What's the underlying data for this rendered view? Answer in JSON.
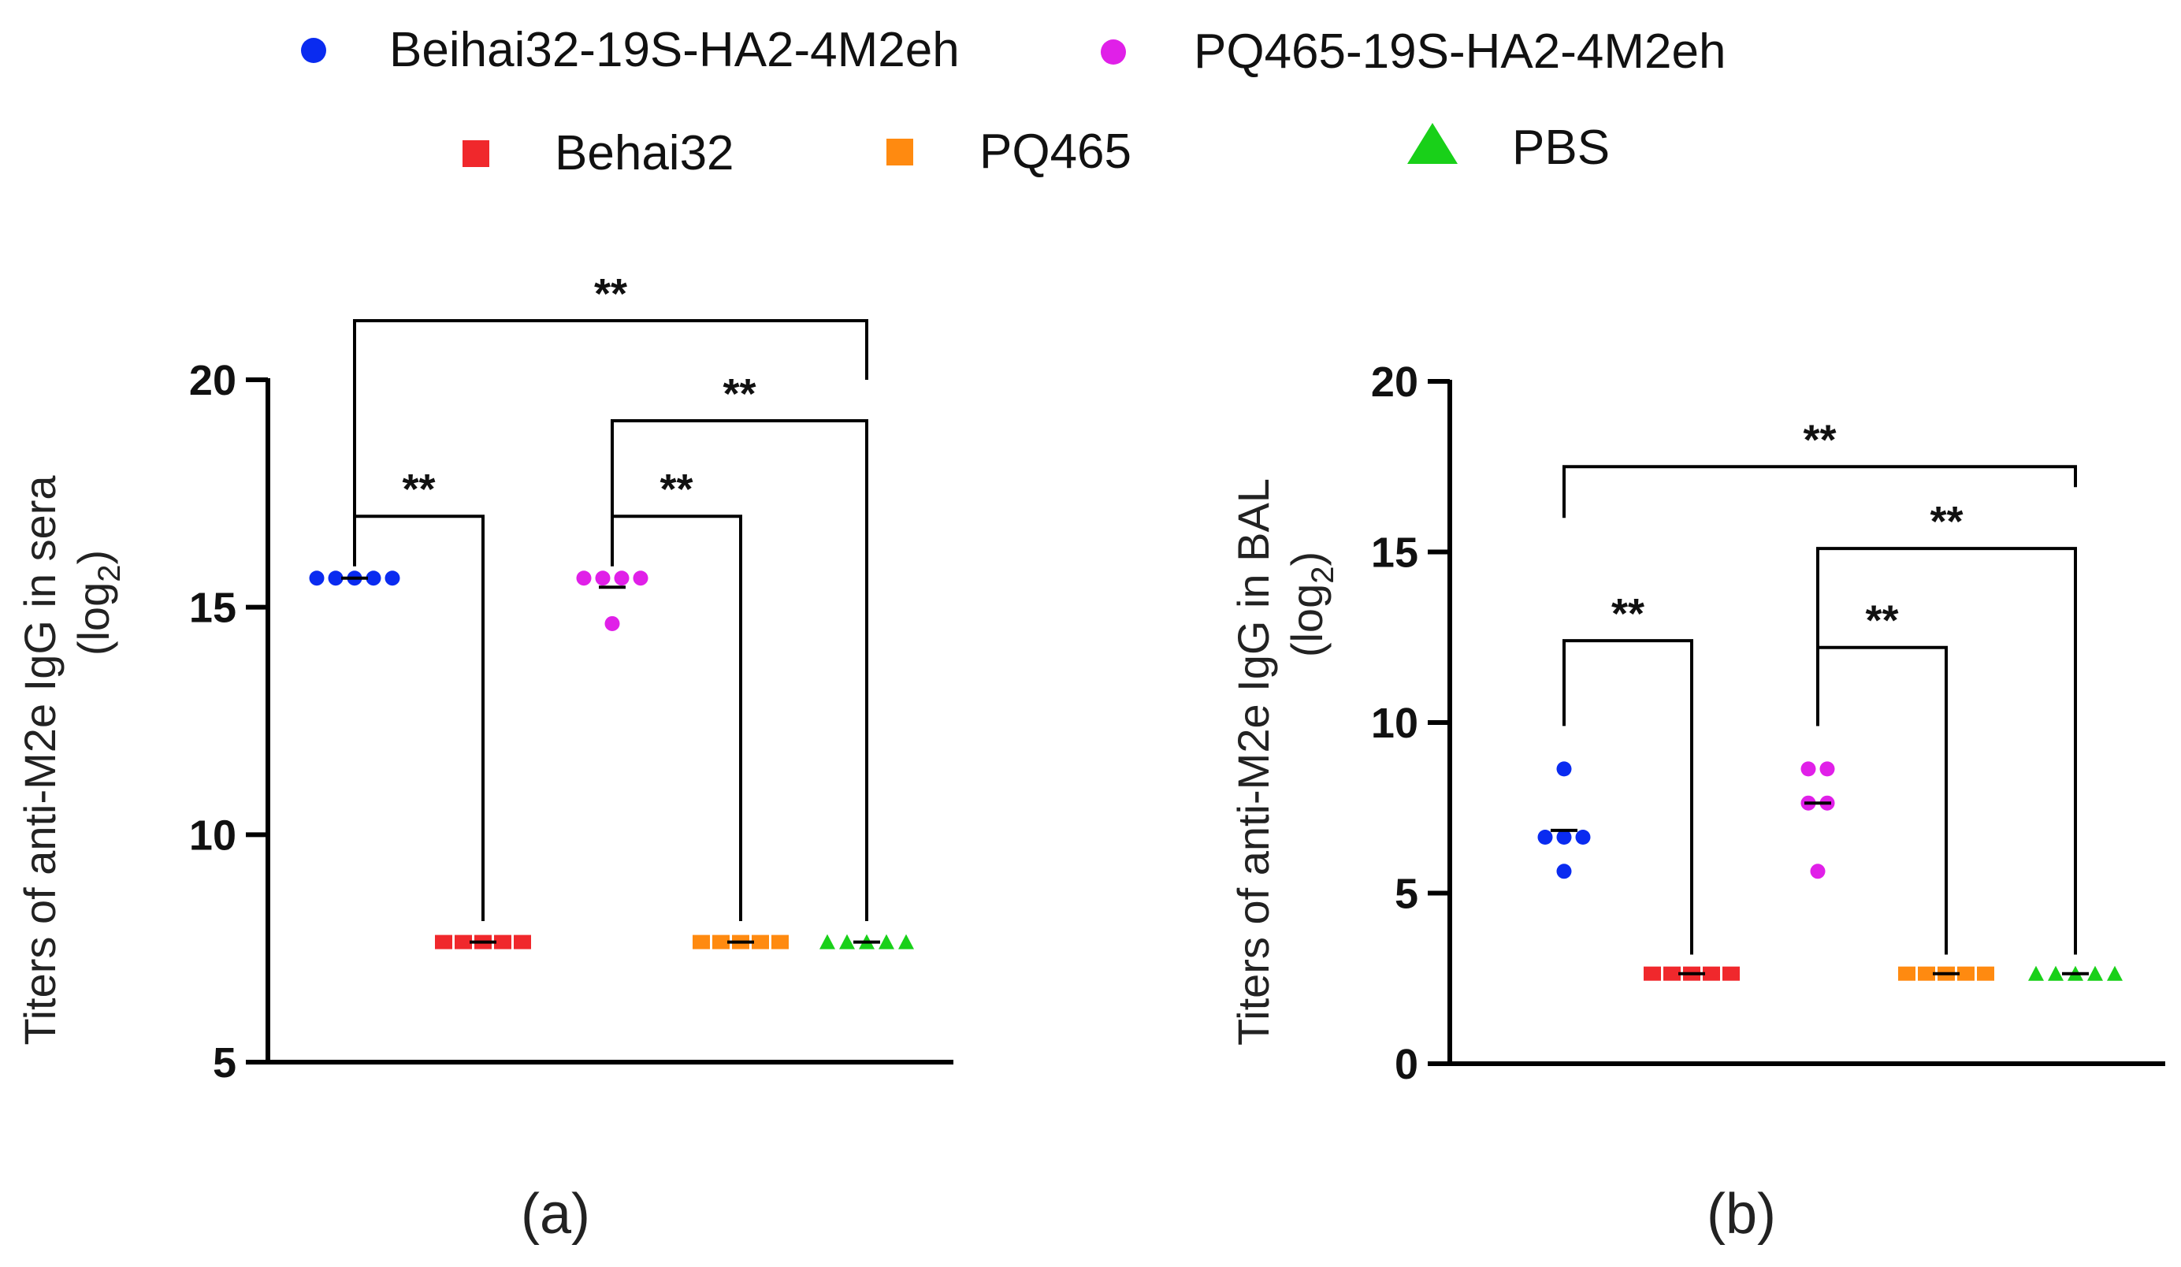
{
  "legend": [
    {
      "label": "Beihai32-19S-HA2-4M2eh",
      "color": "#0a2bf0",
      "marker": "circle"
    },
    {
      "label": "PQ465-19S-HA2-4M2eh",
      "color": "#e020e8",
      "marker": "circle"
    },
    {
      "label": "Behai32",
      "color": "#f0282c",
      "marker": "square"
    },
    {
      "label": "PQ465",
      "color": "#ff8a10",
      "marker": "square"
    },
    {
      "label": "PBS",
      "color": "#19d019",
      "marker": "triangle"
    }
  ],
  "chart_data": [
    {
      "type": "scatter",
      "panel_label": "(a)",
      "ylabel_line1": "Titers of anti-M2e IgG in sera",
      "ylabel_line2_prefix": "(log",
      "ylabel_line2_sub": "2",
      "ylabel_line2_suffix": ")",
      "ylim": [
        5,
        20
      ],
      "yticks": [
        5,
        10,
        15,
        20
      ],
      "ytick_labels": [
        "5",
        "10",
        "15",
        "20"
      ],
      "groups": [
        {
          "name": "Beihai32-19S-HA2-4M2eh",
          "color": "#0a2bf0",
          "marker": "circle",
          "values": [
            15.64,
            15.64,
            15.64,
            15.64,
            15.64
          ],
          "mean": 15.64
        },
        {
          "name": "Behai32",
          "color": "#f0282c",
          "marker": "square",
          "values": [
            7.64,
            7.64,
            7.64,
            7.64,
            7.64
          ],
          "mean": 7.64
        },
        {
          "name": "PQ465-19S-HA2-4M2eh",
          "color": "#e020e8",
          "marker": "circle",
          "values": [
            15.64,
            15.64,
            15.64,
            15.64,
            14.64
          ],
          "mean": 15.44
        },
        {
          "name": "PQ465",
          "color": "#ff8a10",
          "marker": "square",
          "values": [
            7.64,
            7.64,
            7.64,
            7.64,
            7.64
          ],
          "mean": 7.64
        },
        {
          "name": "PBS",
          "color": "#19d019",
          "marker": "triangle",
          "values": [
            7.64,
            7.64,
            7.64,
            7.64,
            7.64
          ],
          "mean": 7.64
        }
      ],
      "significance": [
        {
          "from": 0,
          "to": 1,
          "label": "**",
          "bar_y": 17.0,
          "from_y": 15.9,
          "to_y": 8.1
        },
        {
          "from": 2,
          "to": 3,
          "label": "**",
          "bar_y": 17.0,
          "from_y": 15.9,
          "to_y": 8.1
        },
        {
          "from": 2,
          "to": 4,
          "label": "**",
          "bar_y": 19.1,
          "from_y": 16.7,
          "to_y": 8.1
        },
        {
          "from": 0,
          "to": 4,
          "label": "**",
          "bar_y": 21.3,
          "from_y": 16.3,
          "to_y": 20.0
        }
      ]
    },
    {
      "type": "scatter",
      "panel_label": "(b)",
      "ylabel_line1": "Titers of anti-M2e IgG in BAL",
      "ylabel_line2_prefix": "(log",
      "ylabel_line2_sub": "2",
      "ylabel_line2_suffix": ")",
      "ylim": [
        0,
        20
      ],
      "yticks": [
        0,
        5,
        10,
        15,
        20
      ],
      "ytick_labels": [
        "0",
        "5",
        "10",
        "15",
        "20"
      ],
      "groups": [
        {
          "name": "Beihai32-19S-HA2-4M2eh",
          "color": "#0a2bf0",
          "marker": "circle",
          "values": [
            8.64,
            6.64,
            6.64,
            6.64,
            5.64
          ],
          "mean": 6.84
        },
        {
          "name": "Behai32",
          "color": "#f0282c",
          "marker": "square",
          "values": [
            2.64,
            2.64,
            2.64,
            2.64,
            2.64
          ],
          "mean": 2.64
        },
        {
          "name": "PQ465-19S-HA2-4M2eh",
          "color": "#e020e8",
          "marker": "circle",
          "values": [
            8.64,
            8.64,
            7.64,
            7.64,
            5.64
          ],
          "mean": 7.64
        },
        {
          "name": "PQ465",
          "color": "#ff8a10",
          "marker": "square",
          "values": [
            2.64,
            2.64,
            2.64,
            2.64,
            2.64
          ],
          "mean": 2.64
        },
        {
          "name": "PBS",
          "color": "#19d019",
          "marker": "triangle",
          "values": [
            2.64,
            2.64,
            2.64,
            2.64,
            2.64
          ],
          "mean": 2.64
        }
      ],
      "significance": [
        {
          "from": 0,
          "to": 1,
          "label": "**",
          "bar_y": 12.4,
          "from_y": 9.9,
          "to_y": 3.2
        },
        {
          "from": 2,
          "to": 3,
          "label": "**",
          "bar_y": 12.2,
          "from_y": 9.9,
          "to_y": 3.2
        },
        {
          "from": 2,
          "to": 4,
          "label": "**",
          "bar_y": 15.1,
          "from_y": 9.9,
          "to_y": 3.2
        },
        {
          "from": 0,
          "to": 4,
          "label": "**",
          "bar_y": 17.5,
          "from_y": 16.0,
          "to_y": 16.9
        }
      ]
    }
  ]
}
